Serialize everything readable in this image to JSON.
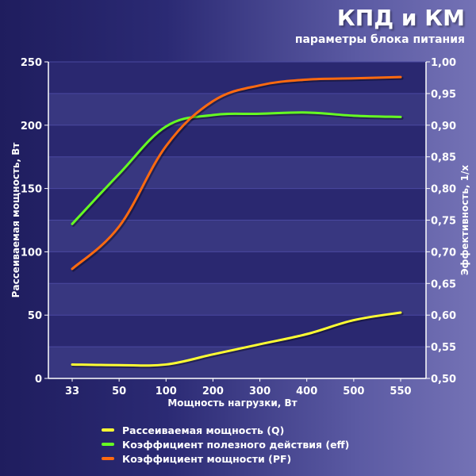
{
  "header": {
    "title": "КПД и КМ",
    "subtitle": "параметры блока питания"
  },
  "colors": {
    "q": "#ffff33",
    "eff": "#66ff22",
    "pf": "#ff6a10",
    "plot_band_dark": "#2a2870",
    "plot_band_light": "#3a3982"
  },
  "legend": [
    {
      "label": "Рассеиваемая мощность (Q)",
      "color": "#ffff33"
    },
    {
      "label": "Коэффициент полезного действия (eff)",
      "color": "#66ff22"
    },
    {
      "label": "Коэффициент мощности (PF)",
      "color": "#ff6a10"
    }
  ],
  "chart_data": {
    "type": "line",
    "xlabel": "Мощность нагрузки, Вт",
    "ylabel_left": "Рассеиваемая мощность, Вт",
    "ylabel_right": "Эффективность, 1/x",
    "categories": [
      "33",
      "50",
      "100",
      "200",
      "300",
      "400",
      "500",
      "550"
    ],
    "y_left": {
      "lim": [
        0,
        250
      ],
      "ticks": [
        "0",
        "50",
        "100",
        "150",
        "200",
        "250"
      ]
    },
    "y_right": {
      "lim": [
        0.5,
        1.0
      ],
      "ticks": [
        "0,50",
        "0,55",
        "0,60",
        "0,65",
        "0,70",
        "0,75",
        "0,80",
        "0,85",
        "0,90",
        "0,95",
        "1,00"
      ]
    },
    "series": [
      {
        "name": "Рассеиваемая мощность (Q)",
        "axis": "left",
        "color": "#ffff33",
        "values": [
          11,
          10.5,
          11,
          19,
          27,
          35,
          46,
          52
        ]
      },
      {
        "name": "Коэффициент полезного действия (eff)",
        "axis": "right",
        "color": "#66ff22",
        "values": [
          0.744,
          0.823,
          0.898,
          0.916,
          0.918,
          0.92,
          0.915,
          0.913
        ]
      },
      {
        "name": "Коэффициент мощности (PF)",
        "axis": "right",
        "color": "#ff6a10",
        "values": [
          0.673,
          0.74,
          0.867,
          0.938,
          0.963,
          0.972,
          0.974,
          0.976
        ]
      }
    ],
    "grid": "horizontal bands",
    "legend_position": "bottom"
  }
}
